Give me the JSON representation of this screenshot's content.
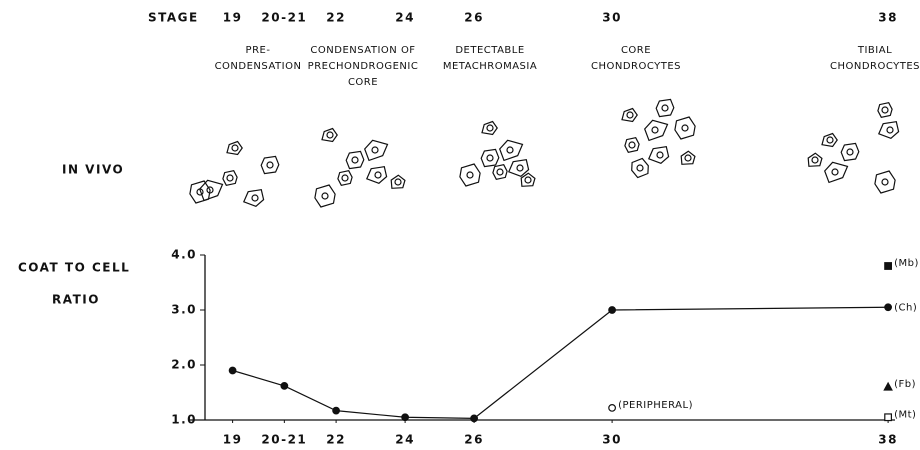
{
  "chart_data": {
    "type": "line",
    "stage_label": "STAGE",
    "in_vivo_label": "IN VIVO",
    "phases": [
      {
        "lines": [
          "PRE-",
          "CONDENSATION"
        ]
      },
      {
        "lines": [
          "CONDENSATION OF",
          "PRECHONDROGENIC",
          "CORE"
        ]
      },
      {
        "lines": [
          "DETECTABLE",
          "METACHROMASIA"
        ]
      },
      {
        "lines": [
          "CORE",
          "CHONDROCYTES"
        ]
      },
      {
        "lines": [
          "TIBIAL",
          "CHONDROCYTES"
        ]
      }
    ],
    "y_label": [
      "COAT TO CELL",
      "RATIO"
    ],
    "xlim": [
      18.2,
      38.2
    ],
    "xticks": [
      19,
      {
        "value": 20.5,
        "label": "20-21"
      },
      22,
      24,
      26,
      30,
      38
    ],
    "ylim": [
      1,
      4
    ],
    "yticks": [
      {
        "value": 1,
        "label": "1.0"
      },
      {
        "value": 2,
        "label": "2.0"
      },
      {
        "value": 3,
        "label": "3.0"
      },
      {
        "value": 4,
        "label": "4.0"
      }
    ],
    "series": [
      {
        "name": "(Ch)",
        "color": "#111111",
        "marker": "filled-circle",
        "line": true,
        "x": [
          19,
          20.5,
          22,
          24,
          26,
          30,
          38
        ],
        "values": [
          1.9,
          1.62,
          1.17,
          1.05,
          1.03,
          3.0,
          3.05
        ]
      },
      {
        "name": "(PERIPHERAL)",
        "color": "#111111",
        "marker": "open-circle",
        "x": [
          30
        ],
        "values": [
          1.22
        ]
      },
      {
        "name": "(Mb)",
        "color": "#111111",
        "marker": "filled-square",
        "x": [
          38
        ],
        "values": [
          3.8
        ]
      },
      {
        "name": "(Fb)",
        "color": "#111111",
        "marker": "filled-triangle",
        "x": [
          38
        ],
        "values": [
          1.6
        ]
      },
      {
        "name": "(Mt)",
        "color": "#111111",
        "marker": "open-square",
        "x": [
          38
        ],
        "values": [
          1.05
        ]
      }
    ]
  }
}
